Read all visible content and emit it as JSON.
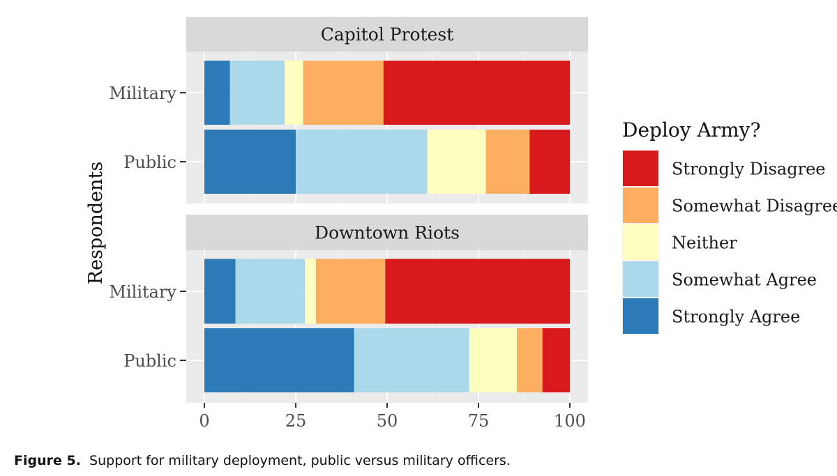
{
  "chart_data": {
    "type": "bar",
    "orientation": "horizontal",
    "stacked": true,
    "ylabel": "Respondents",
    "xlabel": "",
    "xlim": [
      0,
      100
    ],
    "x_ticks": [
      "0",
      "25",
      "50",
      "75",
      "100"
    ],
    "legend": {
      "title": "Deploy Army?",
      "position": "right",
      "entries": [
        "Strongly Disagree",
        "Somewhat Disagree",
        "Neither",
        "Somewhat Agree",
        "Strongly Agree"
      ]
    },
    "stack_order": [
      "Strongly Agree",
      "Somewhat Agree",
      "Neither",
      "Somewhat Disagree",
      "Strongly Disagree"
    ],
    "colors": {
      "Strongly Agree": "#2c7bb6",
      "Somewhat Agree": "#abd9e9",
      "Neither": "#ffffbf",
      "Somewhat Disagree": "#fdae61",
      "Strongly Disagree": "#d7191c"
    },
    "panels": [
      {
        "title": "Capitol Protest",
        "categories": [
          "Military",
          "Public"
        ],
        "series": [
          {
            "name": "Strongly Agree",
            "values": [
              7,
              25
            ]
          },
          {
            "name": "Somewhat Agree",
            "values": [
              15,
              36
            ]
          },
          {
            "name": "Neither",
            "values": [
              5,
              16
            ]
          },
          {
            "name": "Somewhat Disagree",
            "values": [
              22,
              12
            ]
          },
          {
            "name": "Strongly Disagree",
            "values": [
              51,
              11
            ]
          }
        ]
      },
      {
        "title": "Downtown Riots",
        "categories": [
          "Military",
          "Public"
        ],
        "series": [
          {
            "name": "Strongly Agree",
            "values": [
              8.5,
              41
            ]
          },
          {
            "name": "Somewhat Agree",
            "values": [
              19,
              31.5
            ]
          },
          {
            "name": "Neither",
            "values": [
              3,
              13
            ]
          },
          {
            "name": "Somewhat Disagree",
            "values": [
              19,
              7
            ]
          },
          {
            "name": "Strongly Disagree",
            "values": [
              50.5,
              7.5
            ]
          }
        ]
      }
    ]
  },
  "caption": {
    "label": "Figure 5.",
    "text": "Support for military deployment, public versus military officers."
  }
}
